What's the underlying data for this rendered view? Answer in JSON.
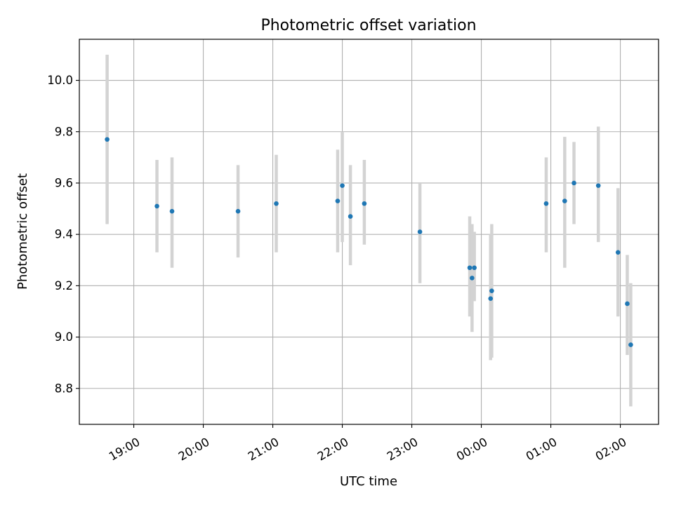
{
  "chart_data": {
    "type": "scatter",
    "title": "Photometric offset variation",
    "xlabel": "UTC time",
    "ylabel": "Photometric offset",
    "x_unit": "UTC time of night (times after midnight belong to the next day)",
    "xlim": [
      "18:13",
      "02:33"
    ],
    "ylim": [
      8.66,
      10.16
    ],
    "x_ticks": [
      "19:00",
      "20:00",
      "21:00",
      "22:00",
      "23:00",
      "00:00",
      "01:00",
      "02:00"
    ],
    "y_ticks": [
      "8.8",
      "9.0",
      "9.2",
      "9.4",
      "9.6",
      "9.8",
      "10.0"
    ],
    "grid": true,
    "colors": {
      "point": "#1f77b4",
      "errorbar": "#d3d3d3",
      "grid": "#b0b0b0"
    },
    "points": [
      {
        "x": "18:37",
        "y": 9.77,
        "err_low": 9.44,
        "err_high": 10.1
      },
      {
        "x": "19:20",
        "y": 9.51,
        "err_low": 9.33,
        "err_high": 9.69
      },
      {
        "x": "19:33",
        "y": 9.49,
        "err_low": 9.27,
        "err_high": 9.7
      },
      {
        "x": "20:30",
        "y": 9.49,
        "err_low": 9.31,
        "err_high": 9.67
      },
      {
        "x": "21:03",
        "y": 9.52,
        "err_low": 9.33,
        "err_high": 9.71
      },
      {
        "x": "21:56",
        "y": 9.53,
        "err_low": 9.33,
        "err_high": 9.73
      },
      {
        "x": "22:00",
        "y": 9.59,
        "err_low": 9.37,
        "err_high": 9.8
      },
      {
        "x": "22:07",
        "y": 9.47,
        "err_low": 9.28,
        "err_high": 9.67
      },
      {
        "x": "22:19",
        "y": 9.52,
        "err_low": 9.36,
        "err_high": 9.69
      },
      {
        "x": "23:07",
        "y": 9.41,
        "err_low": 9.21,
        "err_high": 9.6
      },
      {
        "x": "23:50",
        "y": 9.27,
        "err_low": 9.08,
        "err_high": 9.47
      },
      {
        "x": "23:52",
        "y": 9.23,
        "err_low": 9.02,
        "err_high": 9.44
      },
      {
        "x": "23:54",
        "y": 9.27,
        "err_low": 9.14,
        "err_high": 9.41
      },
      {
        "x": "00:08",
        "y": 9.15,
        "err_low": 8.91,
        "err_high": 9.4
      },
      {
        "x": "00:09",
        "y": 9.18,
        "err_low": 8.92,
        "err_high": 9.44
      },
      {
        "x": "00:56",
        "y": 9.52,
        "err_low": 9.33,
        "err_high": 9.7
      },
      {
        "x": "01:12",
        "y": 9.53,
        "err_low": 9.27,
        "err_high": 9.78
      },
      {
        "x": "01:20",
        "y": 9.6,
        "err_low": 9.44,
        "err_high": 9.76
      },
      {
        "x": "01:41",
        "y": 9.59,
        "err_low": 9.37,
        "err_high": 9.82
      },
      {
        "x": "01:58",
        "y": 9.33,
        "err_low": 9.08,
        "err_high": 9.58
      },
      {
        "x": "02:06",
        "y": 9.13,
        "err_low": 8.93,
        "err_high": 9.32
      },
      {
        "x": "02:09",
        "y": 8.97,
        "err_low": 8.73,
        "err_high": 9.21
      }
    ]
  }
}
